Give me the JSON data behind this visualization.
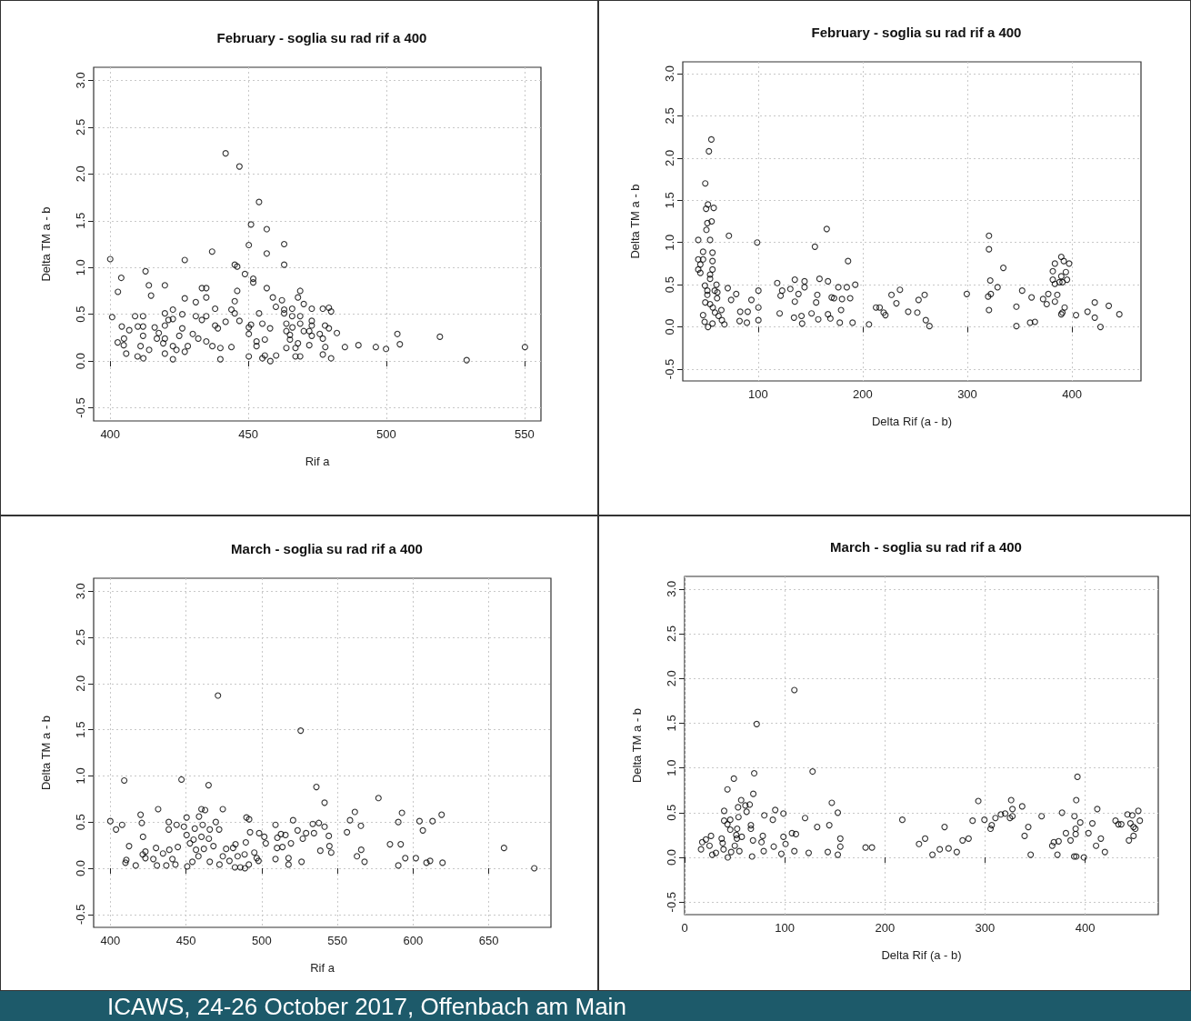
{
  "chart_data": [
    {
      "type": "scatter",
      "title": "February - soglia su rad rif a 400",
      "xlabel": "Rif a",
      "ylabel": "Delta TM a - b",
      "grid": true,
      "marker": "circle",
      "xlim": [
        394,
        556
      ],
      "ylim": [
        -0.64,
        3.14
      ],
      "xticks": [
        400,
        450,
        500,
        550
      ],
      "yticks": [
        {
          "value": -0.5,
          "label": "-0.5"
        },
        {
          "value": 0,
          "label": "0.0"
        },
        0.5,
        {
          "value": 1,
          "label": "1.0"
        },
        1.5,
        {
          "value": 2,
          "label": "2.0"
        },
        2.5,
        {
          "value": 3,
          "label": "3.0"
        }
      ],
      "series": [
        {
          "color": "#000000",
          "x": [
            400,
            400.7,
            402.8,
            404,
            402.7,
            404.2,
            405,
            404.9,
            405.8,
            406.9,
            409,
            410,
            409.9,
            411.9,
            411.9,
            411.9,
            411,
            412,
            412.8,
            414,
            414.8,
            414.1,
            416.1,
            416.9,
            417.6,
            419.2,
            419.8,
            419.8,
            419.8,
            419.8,
            419.8,
            421.1,
            422.7,
            422.7,
            422.7,
            422.7,
            424,
            426.1,
            426.1,
            427,
            427,
            425,
            428.1,
            427,
            429.9,
            431,
            431,
            431.9,
            433.2,
            434.8,
            434.8,
            433.2,
            434.8,
            434.8,
            436.9,
            438,
            438,
            439,
            437,
            439.9,
            439.9,
            441.8,
            441.8,
            443.9,
            443.9,
            445.1,
            446,
            446,
            445.1,
            445.1,
            446.8,
            446.8,
            448.8,
            450.2,
            450.2,
            450.2,
            450.2,
            451,
            451.8,
            451.8,
            451,
            453,
            453,
            453.9,
            453.9,
            455.1,
            455.1,
            456,
            456,
            456.7,
            456.7,
            456.7,
            457.9,
            458,
            458.9,
            460,
            460.1,
            462.2,
            463,
            463,
            463,
            463,
            463.8,
            463.8,
            463.8,
            465.1,
            465.1,
            465.9,
            465.9,
            466,
            467.1,
            467.1,
            468,
            468,
            468.8,
            468.8,
            468.8,
            468.8,
            470.1,
            470.1,
            472.1,
            472.1,
            473,
            473,
            473,
            473,
            475.9,
            477,
            477,
            477,
            477.8,
            477.9,
            479.2,
            480,
            479.2,
            480,
            482.1,
            485,
            489.9,
            496.2,
            499.9,
            504,
            504.9,
            519.4,
            529.1,
            550.2
          ],
          "values": [
            1.09,
            0.47,
            0.74,
            0.89,
            0.2,
            0.37,
            0.24,
            0.17,
            0.08,
            0.33,
            0.48,
            0.37,
            0.05,
            0.48,
            0.37,
            0.27,
            0.16,
            0.03,
            0.96,
            0.81,
            0.7,
            0.12,
            0.36,
            0.24,
            0.3,
            0.19,
            0.81,
            0.51,
            0.38,
            0.24,
            0.08,
            0.44,
            0.55,
            0.45,
            0.16,
            0.02,
            0.12,
            0.5,
            0.35,
            1.08,
            0.67,
            0.27,
            0.16,
            0.1,
            0.29,
            0.63,
            0.48,
            0.24,
            0.78,
            0.78,
            0.68,
            0.44,
            0.48,
            0.21,
            1.17,
            0.56,
            0.38,
            0.35,
            0.16,
            0.14,
            0.02,
            2.22,
            0.42,
            0.55,
            0.15,
            1.03,
            1.01,
            0.75,
            0.64,
            0.51,
            2.08,
            0.43,
            0.93,
            1.24,
            0.36,
            0.29,
            0.05,
            1.46,
            0.88,
            0.84,
            0.39,
            0.21,
            0.16,
            1.7,
            0.51,
            0.4,
            0.03,
            0.23,
            0.06,
            1.41,
            1.15,
            0.78,
            0.35,
            0,
            0.68,
            0.58,
            0.06,
            0.65,
            1.25,
            1.03,
            0.55,
            0.51,
            0.4,
            0.32,
            0.14,
            0.28,
            0.23,
            0.56,
            0.48,
            0.36,
            0.14,
            0.05,
            0.68,
            0.19,
            0.75,
            0.48,
            0.4,
            0.05,
            0.61,
            0.32,
            0.32,
            0.17,
            0.56,
            0.43,
            0.38,
            0.27,
            0.29,
            0.56,
            0.24,
            0.07,
            0.38,
            0.15,
            0.57,
            0.53,
            0.35,
            0.03,
            0.3,
            0.15,
            0.17,
            0.15,
            0.13,
            0.29,
            0.18,
            0.26,
            0.01,
            0.15
          ]
        }
      ]
    },
    {
      "type": "scatter",
      "title": "February - soglia su rad rif a 400",
      "xlabel": "Delta Rif (a - b)",
      "ylabel": "Delta TM a - b",
      "grid": true,
      "marker": "circle",
      "xlim": [
        28,
        466
      ],
      "ylim": [
        -0.64,
        3.14
      ],
      "xticks": [
        100,
        200,
        300,
        400
      ],
      "yticks": [
        {
          "value": -0.5,
          "label": "-0.5"
        },
        {
          "value": 0,
          "label": "0.0"
        },
        0.5,
        {
          "value": 1,
          "label": "1.0"
        },
        1.5,
        {
          "value": 2,
          "label": "2.0"
        },
        2.5,
        {
          "value": 3,
          "label": "3.0"
        }
      ],
      "series": [
        {
          "color": "#000000",
          "x": [
            55.3,
            53,
            49.5,
            52.1,
            50.3,
            57.6,
            51.5,
            55.6,
            50.6,
            42.8,
            54.1,
            47.4,
            56.4,
            42.8,
            47.4,
            56.4,
            44.8,
            42.8,
            56.4,
            44.8,
            54.1,
            54.1,
            49.2,
            60.2,
            58.5,
            61.1,
            51.5,
            51.5,
            60.8,
            49.5,
            54.1,
            56.7,
            64.9,
            47.4,
            58.8,
            62.2,
            48.9,
            56.4,
            52.1,
            65.4,
            67.8,
            72.1,
            71,
            74.2,
            79.1,
            82.9,
            82.3,
            90.1,
            89.3,
            93.6,
            99.1,
            100.3,
            100.3,
            100.3,
            118.3,
            121.5,
            123,
            120.6,
            130.8,
            134.3,
            135.1,
            135.1,
            138.6,
            141.5,
            142.1,
            144.4,
            144.4,
            151.1,
            154.3,
            155.5,
            156.6,
            157.5,
            158.7,
            165.6,
            166.8,
            166.8,
            169.1,
            170.3,
            172.6,
            176.7,
            178.1,
            179.3,
            180.2,
            184.8,
            186,
            188,
            190.3,
            192.9,
            206,
            212.7,
            216.2,
            220,
            221.7,
            227.5,
            232.2,
            235.6,
            243.5,
            252.2,
            253.4,
            259.2,
            260.3,
            263.8,
            299.5,
            319.9,
            322.5,
            320.7,
            321.9,
            320.7,
            320.7,
            328.9,
            334.4,
            346.9,
            346.9,
            352.4,
            360,
            364.6,
            361.4,
            372.4,
            375.9,
            377.4,
            381.7,
            381.7,
            383.7,
            383.7,
            383.7,
            386,
            389.8,
            389.8,
            388,
            391,
            392.2,
            389.8,
            390.9,
            393,
            394.2,
            395.3,
            397.3,
            403.9,
            414.9,
            421.8,
            421.8,
            427.3,
            435.2,
            445.3
          ],
          "values": [
            2.22,
            2.08,
            1.7,
            1.45,
            1.4,
            1.41,
            1.23,
            1.25,
            1.15,
            1.03,
            1.03,
            0.89,
            0.88,
            0.8,
            0.8,
            0.78,
            0.74,
            0.68,
            0.68,
            0.64,
            0.62,
            0.57,
            0.49,
            0.5,
            0.43,
            0.41,
            0.43,
            0.38,
            0.34,
            0.29,
            0.27,
            0.23,
            0.2,
            0.14,
            0.17,
            0.13,
            0.06,
            0.04,
            0,
            0.08,
            0.03,
            1.08,
            0.46,
            0.32,
            0.39,
            0.18,
            0.07,
            0.18,
            0.05,
            0.32,
            1,
            0.43,
            0.23,
            0.08,
            0.52,
            0.37,
            0.43,
            0.16,
            0.45,
            0.11,
            0.56,
            0.3,
            0.39,
            0.13,
            0.04,
            0.54,
            0.47,
            0.16,
            0.95,
            0.29,
            0.38,
            0.09,
            0.57,
            1.16,
            0.54,
            0.15,
            0.1,
            0.35,
            0.34,
            0.47,
            0.05,
            0.2,
            0.33,
            0.47,
            0.78,
            0.34,
            0.05,
            0.5,
            0.03,
            0.23,
            0.23,
            0.17,
            0.14,
            0.38,
            0.28,
            0.44,
            0.18,
            0.17,
            0.32,
            0.38,
            0.08,
            0.01,
            0.39,
            0.36,
            0.39,
            0.2,
            0.55,
            1.08,
            0.92,
            0.47,
            0.7,
            0.01,
            0.24,
            0.43,
            0.05,
            0.06,
            0.35,
            0.33,
            0.27,
            0.39,
            0.66,
            0.56,
            0.75,
            0.51,
            0.3,
            0.38,
            0.83,
            0.6,
            0.53,
            0.53,
            0.78,
            0.15,
            0.17,
            0.23,
            0.65,
            0.56,
            0.75,
            0.14,
            0.18,
            0.29,
            0.11,
            0,
            0.25,
            0.15
          ]
        }
      ]
    },
    {
      "type": "scatter",
      "title": "March - soglia su rad rif a 400",
      "xlabel": "Rif a",
      "ylabel": "Delta TM a - b",
      "grid": true,
      "marker": "circle",
      "xlim": [
        389,
        691
      ],
      "ylim": [
        -0.64,
        3.14
      ],
      "xticks": [
        400,
        450,
        500,
        550,
        600,
        650
      ],
      "yticks": [
        {
          "value": -0.5,
          "label": "-0.5"
        },
        {
          "value": 0,
          "label": "0.0"
        },
        0.5,
        {
          "value": 1,
          "label": "1.0"
        },
        1.5,
        {
          "value": 2,
          "label": "2.0"
        },
        2.5,
        {
          "value": 3,
          "label": "3.0"
        }
      ],
      "annotations": [
        "ICAWS, 24-26 October 2017, Offenbach am Main"
      ],
      "series": [
        {
          "color": "#000000",
          "x": [
            400,
            403.8,
            407.8,
            409.2,
            412.4,
            410.6,
            410,
            416.8,
            420,
            420.8,
            421.6,
            421.4,
            423.2,
            423.2,
            428.4,
            430.2,
            430.8,
            431.6,
            434.8,
            437,
            438.6,
            438.6,
            439,
            441,
            443,
            443.8,
            444.6,
            447,
            448.6,
            450.4,
            450.4,
            450.8,
            452.6,
            454.2,
            455,
            455.8,
            456.6,
            458.2,
            458.6,
            460.2,
            460.2,
            461,
            461.8,
            462.6,
            464.9,
            465.1,
            465.7,
            465.7,
            468.1,
            469.7,
            471.1,
            471.9,
            472.1,
            474.3,
            474.3,
            476.5,
            478.7,
            481.1,
            482.7,
            482.3,
            484.1,
            485.9,
            488.7,
            488.9,
            489.5,
            489.9,
            491.7,
            491.5,
            492.3,
            495.1,
            496.7,
            497.9,
            498.3,
            501.7,
            502.7,
            509.1,
            509.1,
            510.1,
            510.3,
            512.7,
            513.7,
            515.7,
            517.7,
            517.7,
            519.3,
            520.7,
            523.7,
            525.7,
            526.3,
            527.1,
            529.3,
            533.7,
            534.5,
            536.1,
            537.7,
            538.7,
            541.5,
            541.5,
            544.3,
            544.7,
            545.9,
            556.3,
            558.3,
            561.5,
            565.5,
            562.9,
            565.7,
            567.9,
            577.1,
            584.7,
            590.2,
            591.8,
            592.6,
            590.2,
            594.8,
            601.8,
            604.2,
            606.4,
            608.8,
            611.2,
            612.8,
            618.8,
            619.4,
            660,
            680
          ],
          "values": [
            0.51,
            0.42,
            0.47,
            0.95,
            0.24,
            0.09,
            0.06,
            0.03,
            0.58,
            0.49,
            0.34,
            0.15,
            0.18,
            0.11,
            0.1,
            0.22,
            0.03,
            0.64,
            0.16,
            0.03,
            0.5,
            0.42,
            0.2,
            0.1,
            0.04,
            0.47,
            0.23,
            0.96,
            0.45,
            0.55,
            0.36,
            0.02,
            0.27,
            0.07,
            0.31,
            0.43,
            0.2,
            0.13,
            0.56,
            0.64,
            0.34,
            0.47,
            0.21,
            0.63,
            0.9,
            0.32,
            0.07,
            0.42,
            0.24,
            0.5,
            1.87,
            0.42,
            0.04,
            0.64,
            0.13,
            0.21,
            0.08,
            0.22,
            0.26,
            0.01,
            0.13,
            0.01,
            0.15,
            0,
            0.28,
            0.55,
            0.53,
            0.04,
            0.39,
            0.17,
            0.11,
            0.08,
            0.38,
            0.34,
            0.27,
            0.47,
            0.1,
            0.22,
            0.33,
            0.37,
            0.23,
            0.36,
            0.11,
            0.04,
            0.27,
            0.52,
            0.41,
            1.49,
            0.07,
            0.32,
            0.38,
            0.48,
            0.38,
            0.88,
            0.49,
            0.19,
            0.71,
            0.45,
            0.35,
            0.24,
            0.17,
            0.39,
            0.52,
            0.61,
            0.46,
            0.13,
            0.2,
            0.07,
            0.76,
            0.26,
            0.5,
            0.26,
            0.6,
            0.03,
            0.11,
            0.11,
            0.51,
            0.41,
            0.06,
            0.08,
            0.51,
            0.58,
            0.06,
            0.22,
            0
          ]
        }
      ]
    },
    {
      "type": "scatter",
      "title": "March - soglia su rad rif a 400",
      "xlabel": "Delta Rif (a - b)",
      "ylabel": "Delta TM a - b",
      "grid": true,
      "marker": "circle",
      "xlim": [
        0,
        473
      ],
      "ylim": [
        -0.64,
        3.14
      ],
      "xticks": [
        0,
        100,
        200,
        300,
        400
      ],
      "yticks": [
        {
          "value": -0.5,
          "label": "-0.5"
        },
        {
          "value": 0,
          "label": "0.0"
        },
        0.5,
        {
          "value": 1,
          "label": "1.0"
        },
        1.5,
        {
          "value": 2,
          "label": "2.0"
        },
        2.5,
        {
          "value": 3,
          "label": "3.0"
        }
      ],
      "series": [
        {
          "color": "#000000",
          "x": [
            16.4,
            17.6,
            21.3,
            24.9,
            26.4,
            27.6,
            31.3,
            37,
            38,
            38.9,
            39.5,
            39.5,
            42.8,
            42.8,
            43.1,
            45.6,
            45.6,
            46.5,
            49.2,
            50.1,
            51.6,
            52.2,
            52.5,
            53.4,
            53.8,
            54.7,
            56.5,
            57.1,
            60.7,
            61.9,
            65,
            66.2,
            66.2,
            67.4,
            68.3,
            68.6,
            69.5,
            72,
            76.8,
            78.1,
            79.6,
            79,
            88.1,
            89,
            90.5,
            96.6,
            98.7,
            98.7,
            100.8,
            107.2,
            109.6,
            109.6,
            111.2,
            120.3,
            123.9,
            127.8,
            132.4,
            143,
            144.5,
            147,
            153,
            153,
            155.5,
            155.5,
            180.7,
            187.1,
            217.4,
            234.1,
            240.2,
            247.5,
            254.8,
            259.6,
            263.6,
            271.8,
            277.6,
            283.6,
            287.6,
            293.3,
            299.4,
            305.5,
            306.7,
            310.4,
            315.8,
            320.1,
            324.9,
            327.4,
            326.1,
            327.4,
            337.1,
            339.5,
            343.2,
            345.6,
            356.5,
            367.1,
            368.7,
            372.3,
            373.5,
            376.9,
            380.8,
            385.4,
            389,
            391.1,
            389.3,
            390.5,
            390.5,
            391.1,
            392.3,
            395.1,
            398.7,
            403.3,
            407.2,
            410.9,
            412.1,
            415.7,
            419.7,
            430.3,
            433.1,
            436.1,
            442.2,
            443.7,
            445.2,
            447.1,
            448.3,
            450.1,
            448.3,
            453.1,
            454.6
          ],
          "values": [
            0.09,
            0.17,
            0.2,
            0.13,
            0.24,
            0.03,
            0.05,
            0.21,
            0.16,
            0.09,
            0.52,
            0.41,
            0.76,
            0.37,
            0,
            0.31,
            0.42,
            0.06,
            0.88,
            0.13,
            0.25,
            0.21,
            0.32,
            0.56,
            0.45,
            0.07,
            0.64,
            0.23,
            0.58,
            0.51,
            0.59,
            0.36,
            0.32,
            0.01,
            0.19,
            0.71,
            0.94,
            1.49,
            0.17,
            0.24,
            0.47,
            0.07,
            0.42,
            0.12,
            0.53,
            0.04,
            0.49,
            0.23,
            0.15,
            0.27,
            1.87,
            0.07,
            0.26,
            0.44,
            0.05,
            0.96,
            0.34,
            0.06,
            0.36,
            0.61,
            0.5,
            0.03,
            0.12,
            0.21,
            0.11,
            0.11,
            0.42,
            0.15,
            0.21,
            0.03,
            0.09,
            0.34,
            0.1,
            0.06,
            0.19,
            0.21,
            0.41,
            0.63,
            0.42,
            0.32,
            0.36,
            0.44,
            0.48,
            0.49,
            0.44,
            0.46,
            0.64,
            0.54,
            0.57,
            0.24,
            0.34,
            0.03,
            0.46,
            0.13,
            0.17,
            0.03,
            0.18,
            0.5,
            0.27,
            0.19,
            0.01,
            0.01,
            0.46,
            0.26,
            0.32,
            0.64,
            0.9,
            0.39,
            0,
            0.27,
            0.38,
            0.13,
            0.54,
            0.21,
            0.06,
            0.41,
            0.37,
            0.37,
            0.48,
            0.19,
            0.38,
            0.47,
            0.34,
            0.32,
            0.24,
            0.52,
            0.41
          ]
        }
      ]
    }
  ]
}
